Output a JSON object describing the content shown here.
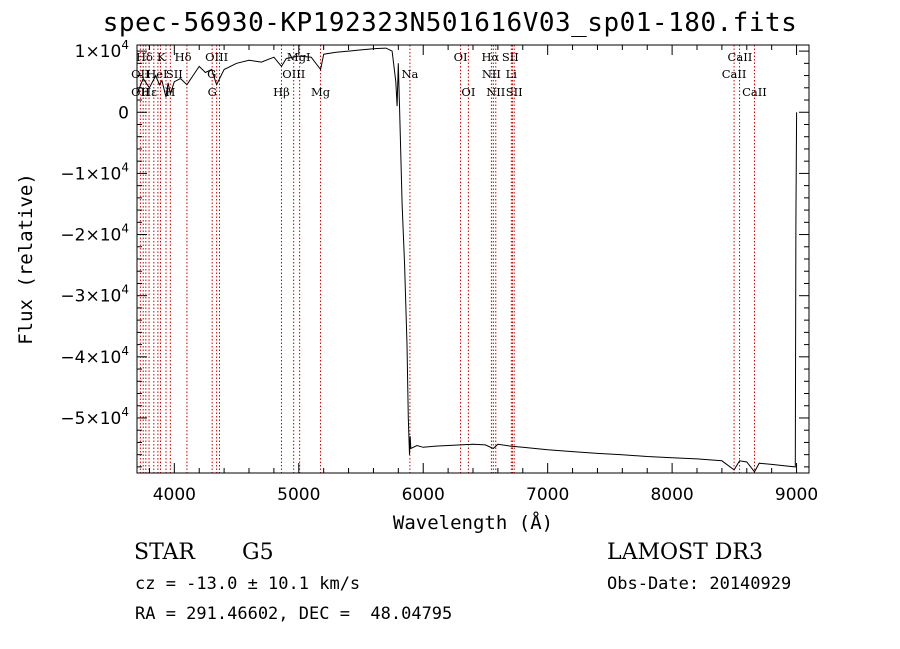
{
  "chart_data": {
    "type": "line",
    "title": "spec-56930-KP192323N501616V03_sp01-180.fits",
    "xlabel": "Wavelength (Å)",
    "ylabel": "Flux (relative)",
    "xlim": [
      3700,
      9100
    ],
    "ylim": [
      -59000,
      11000
    ],
    "x_ticks": [
      4000,
      5000,
      6000,
      7000,
      8000,
      9000
    ],
    "x_tick_labels": [
      "4000",
      "5000",
      "6000",
      "7000",
      "8000",
      "9000"
    ],
    "y_ticks": [
      10000,
      0,
      -10000,
      -20000,
      -30000,
      -40000,
      -50000
    ],
    "y_tick_labels": [
      {
        "m": "1",
        "e": "4",
        "neg": false
      },
      {
        "m": "0",
        "e": "",
        "neg": false
      },
      {
        "m": "1",
        "e": "4",
        "neg": true
      },
      {
        "m": "2",
        "e": "4",
        "neg": true
      },
      {
        "m": "3",
        "e": "4",
        "neg": true
      },
      {
        "m": "4",
        "e": "4",
        "neg": true
      },
      {
        "m": "5",
        "e": "4",
        "neg": true
      }
    ],
    "series": [
      {
        "name": "spectrum",
        "x": [
          3700,
          3750,
          3800,
          3850,
          3880,
          3900,
          3933,
          3950,
          3968,
          4000,
          4050,
          4101,
          4150,
          4200,
          4250,
          4300,
          4340,
          4400,
          4500,
          4600,
          4700,
          4800,
          4861,
          4900,
          5000,
          5100,
          5175,
          5200,
          5300,
          5400,
          5500,
          5600,
          5700,
          5750,
          5780,
          5790,
          5800,
          5810,
          5830,
          5850,
          5870,
          5880,
          5890,
          5895,
          5900,
          5950,
          6000,
          6100,
          6200,
          6300,
          6400,
          6500,
          6563,
          6600,
          6700,
          6800,
          6900,
          7000,
          7200,
          7400,
          7600,
          7800,
          8000,
          8200,
          8400,
          8498,
          8542,
          8600,
          8662,
          8700,
          8800,
          8900,
          8990,
          8995,
          9000
        ],
        "y": [
          3000,
          5500,
          4000,
          6000,
          4500,
          5200,
          2500,
          4800,
          3000,
          5000,
          5500,
          4500,
          6000,
          7500,
          6500,
          7000,
          4500,
          7000,
          8000,
          8500,
          8200,
          9000,
          7500,
          8800,
          9200,
          9000,
          7000,
          9500,
          9800,
          10000,
          10200,
          10400,
          10500,
          10000,
          5000,
          1000,
          8000,
          500,
          -15000,
          -25000,
          -38000,
          -50000,
          -56000,
          -53000,
          -55000,
          -54500,
          -54800,
          -54600,
          -54500,
          -54400,
          -54300,
          -54400,
          -55000,
          -54300,
          -54600,
          -54800,
          -55000,
          -55200,
          -55500,
          -55800,
          -56000,
          -56300,
          -56500,
          -56700,
          -57000,
          -58500,
          -57000,
          -57200,
          -58800,
          -57400,
          -57600,
          -57800,
          -58000,
          -18000,
          0
        ]
      }
    ],
    "lines_top": [
      {
        "label": "Hδ",
        "x": 3760,
        "row": 1
      },
      {
        "label": "K",
        "x": 3895,
        "row": 1
      },
      {
        "label": "Hδ",
        "x": 4070,
        "row": 1
      },
      {
        "label": "OIII",
        "x": 4340,
        "row": 1
      },
      {
        "label": "MgI",
        "x": 5000,
        "row": 1
      },
      {
        "label": "OI",
        "x": 6300,
        "row": 1
      },
      {
        "label": "Hα",
        "x": 6540,
        "row": 1
      },
      {
        "label": "SII",
        "x": 6700,
        "row": 1
      },
      {
        "label": "CaII",
        "x": 8545,
        "row": 1
      },
      {
        "label": "OII",
        "x": 3727,
        "row": 2
      },
      {
        "label": "HeI",
        "x": 3860,
        "row": 2
      },
      {
        "label": "SII",
        "x": 4000,
        "row": 2
      },
      {
        "label": "G",
        "x": 4300,
        "row": 2
      },
      {
        "label": "OIII",
        "x": 4960,
        "row": 2
      },
      {
        "label": "Na",
        "x": 5893,
        "row": 2
      },
      {
        "label": "NII",
        "x": 6548,
        "row": 2
      },
      {
        "label": "Li",
        "x": 6708,
        "row": 2
      },
      {
        "label": "CaII",
        "x": 8498,
        "row": 2
      },
      {
        "label": "OII",
        "x": 3727,
        "row": 3
      },
      {
        "label": "Hε",
        "x": 3797,
        "row": 3
      },
      {
        "label": "H",
        "x": 3968,
        "row": 3
      },
      {
        "label": "G",
        "x": 4304,
        "row": 3
      },
      {
        "label": "Hβ",
        "x": 4861,
        "row": 3
      },
      {
        "label": "Mg",
        "x": 5175,
        "row": 3
      },
      {
        "label": "OI",
        "x": 6363,
        "row": 3
      },
      {
        "label": "NII",
        "x": 6583,
        "row": 3
      },
      {
        "label": "SII",
        "x": 6731,
        "row": 3
      },
      {
        "label": "CaII",
        "x": 8662,
        "row": 3
      }
    ],
    "vlines": [
      3727,
      3750,
      3771,
      3797,
      3835,
      3868,
      3889,
      3933,
      3968,
      4101,
      4304,
      4340,
      4363,
      4861,
      4959,
      5007,
      5175,
      5893,
      6300,
      6363,
      6548,
      6563,
      6583,
      6708,
      6717,
      6731,
      8498,
      8542,
      8662
    ]
  },
  "info": {
    "class": "STAR",
    "subclass": "G5",
    "survey": "LAMOST DR3",
    "cz": "cz = -13.0 ± 10.1 km/s",
    "obs_date": "Obs-Date: 20140929",
    "radec": "RA = 291.46602, DEC =  48.04795"
  },
  "colors": {
    "spectrum": "#000000",
    "lines": "#cc0000",
    "axis": "#000000"
  }
}
